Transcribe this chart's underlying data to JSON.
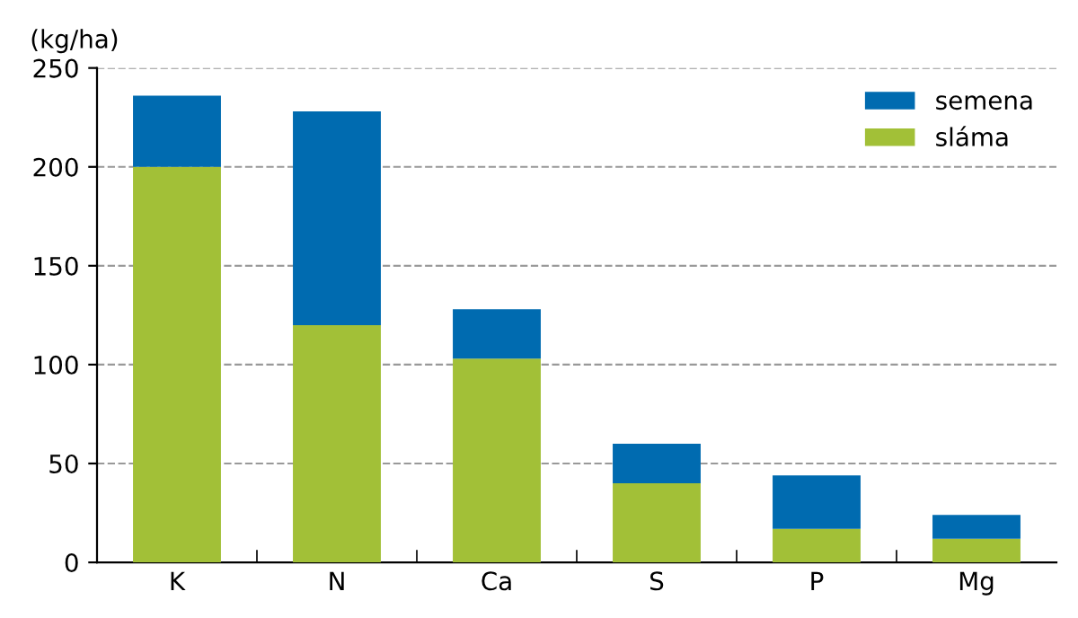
{
  "chart_data": {
    "type": "bar",
    "stacked": true,
    "ylabel": "(kg/ha)",
    "categories": [
      "K",
      "N",
      "Ca",
      "S",
      "P",
      "Mg"
    ],
    "series": [
      {
        "name": "sláma",
        "color": "#a2c037",
        "values": [
          200,
          120,
          103,
          40,
          17,
          12
        ]
      },
      {
        "name": "semena",
        "color": "#006bb0",
        "values": [
          36,
          108,
          25,
          20,
          27,
          12
        ]
      }
    ],
    "ylim": [
      0,
      250
    ],
    "yticks": [
      0,
      50,
      100,
      150,
      200,
      250
    ],
    "grid": "y",
    "legend": "top right"
  }
}
